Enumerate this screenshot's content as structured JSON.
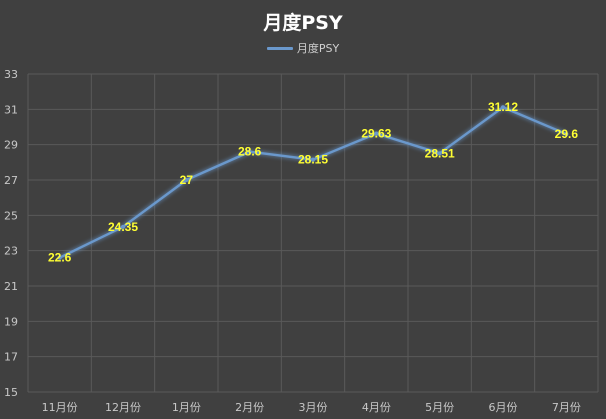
{
  "colors": {
    "background": "#404040",
    "grid": "#5a5a5a",
    "line": "#6a98cc",
    "label": "#ffff33",
    "text": "#c8c8c8"
  },
  "chart_data": {
    "type": "line",
    "title": "月度PSY",
    "categories": [
      "11月份",
      "12月份",
      "1月份",
      "2月份",
      "3月份",
      "4月份",
      "5月份",
      "6月份",
      "7月份"
    ],
    "series": [
      {
        "name": "月度PSY",
        "values": [
          22.6,
          24.35,
          27,
          28.6,
          28.15,
          29.63,
          28.51,
          31.12,
          29.6
        ]
      }
    ],
    "ylim": [
      15,
      33
    ],
    "yticks": [
      15,
      17,
      19,
      21,
      23,
      25,
      27,
      29,
      31,
      33
    ],
    "grid": true,
    "legend": "top-center",
    "data_labels": true
  }
}
